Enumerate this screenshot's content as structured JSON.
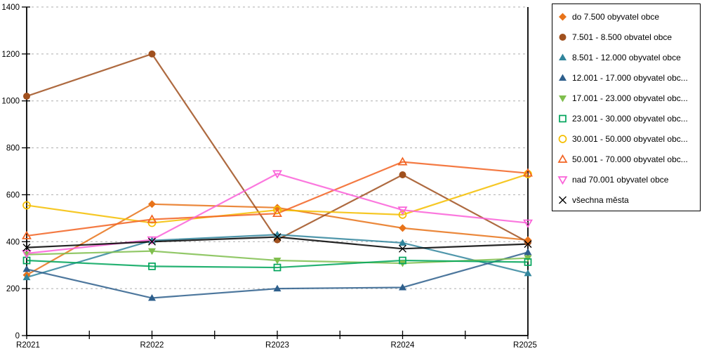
{
  "chart_data": {
    "type": "line",
    "title": "",
    "xlabel": "",
    "ylabel": "",
    "categories": [
      "R2021",
      "R2022",
      "R2023",
      "R2024",
      "R2025"
    ],
    "ylim": [
      0,
      1400
    ],
    "ytick_step": 200,
    "y_tick_labels": [
      "0",
      "200",
      "400",
      "600",
      "800",
      "1000",
      "1200",
      "1400"
    ],
    "grid": "dashed-horizontal",
    "legend_position": "right-outside",
    "series": [
      {
        "name": "do 7.500 obyvatel obce",
        "color": "#E8731A",
        "marker": "diamond",
        "marker_style": "filled",
        "values": [
          258,
          560,
          545,
          458,
          407
        ]
      },
      {
        "name": "7.501 - 8.500 obvatel obce",
        "color": "#A0501E",
        "marker": "circle",
        "marker_style": "filled",
        "values": [
          1020,
          1200,
          408,
          685,
          398
        ]
      },
      {
        "name": "8.501 - 12.000 obyvatel obce",
        "color": "#31859C",
        "marker": "triangle-up",
        "marker_style": "filled",
        "values": [
          248,
          405,
          430,
          395,
          265
        ]
      },
      {
        "name": "12.001 - 17.000 obyvatel obc...",
        "color": "#2E5F8C",
        "marker": "triangle-up",
        "marker_style": "filled",
        "values": [
          283,
          160,
          200,
          205,
          355
        ]
      },
      {
        "name": "17.001 - 23.000 obyvatel obc...",
        "color": "#7FBE4D",
        "marker": "triangle-down",
        "marker_style": "filled",
        "values": [
          345,
          360,
          320,
          308,
          330
        ]
      },
      {
        "name": "23.001 - 30.000 obyvatel obc...",
        "color": "#00A45B",
        "marker": "square",
        "marker_style": "open",
        "values": [
          320,
          295,
          290,
          320,
          313
        ]
      },
      {
        "name": "30.001 - 50.000 obyvatel obc...",
        "color": "#F5BE00",
        "marker": "circle",
        "marker_style": "open",
        "values": [
          555,
          480,
          535,
          515,
          688
        ]
      },
      {
        "name": "50.001 - 70.000 obyvatel obc...",
        "color": "#F26322",
        "marker": "triangle-up",
        "marker_style": "open",
        "values": [
          425,
          495,
          520,
          740,
          692
        ]
      },
      {
        "name": "nad 70.001 obyvatel obce",
        "color": "#FA60D8",
        "marker": "triangle-down",
        "marker_style": "open",
        "values": [
          350,
          408,
          690,
          535,
          480
        ]
      },
      {
        "name": "všechna města",
        "color": "#000000",
        "marker": "x",
        "marker_style": "open",
        "values": [
          375,
          400,
          420,
          370,
          390
        ]
      }
    ],
    "colors": {
      "background": "#FFFFFF",
      "axis": "#000000",
      "gridline": "#ADADAD",
      "legend_border": "#000000"
    }
  }
}
